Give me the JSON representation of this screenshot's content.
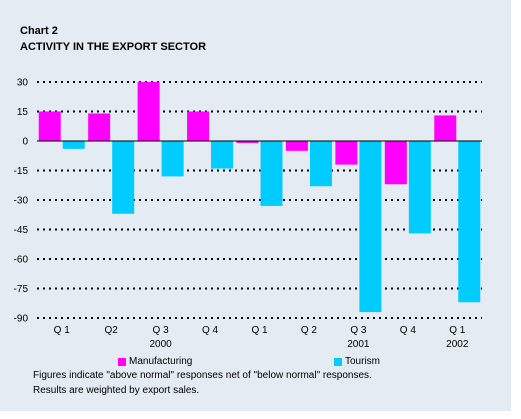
{
  "chart_number": "Chart 2",
  "chart_data": {
    "type": "bar",
    "title": "ACTIVITY IN THE EXPORT SECTOR",
    "categories": [
      "Q 1",
      "Q2",
      "Q 3",
      "Q 4",
      "Q 1",
      "Q 2",
      "Q 3",
      "Q 4",
      "Q 1"
    ],
    "year_labels": [
      "",
      "",
      "2000",
      "",
      "",
      "",
      "2001",
      "",
      "2002"
    ],
    "series": [
      {
        "name": "Manufacturing",
        "color": "#ff00ff",
        "values": [
          15,
          14,
          30,
          15,
          -1,
          -5,
          -12,
          -22,
          13
        ]
      },
      {
        "name": "Tourism",
        "color": "#00ccff",
        "values": [
          -4,
          -37,
          -18,
          -14,
          -33,
          -23,
          -87,
          -47,
          -82
        ]
      }
    ],
    "ylim": [
      -90,
      30
    ],
    "yticks": [
      30,
      15,
      0,
      -15,
      -30,
      -45,
      -60,
      -75,
      -90
    ],
    "grid": true,
    "legend_position": "bottom"
  },
  "notes": [
    "Figures indicate \"above normal\" responses net of \"below normal\" responses.",
    "Results are weighted by export sales."
  ]
}
